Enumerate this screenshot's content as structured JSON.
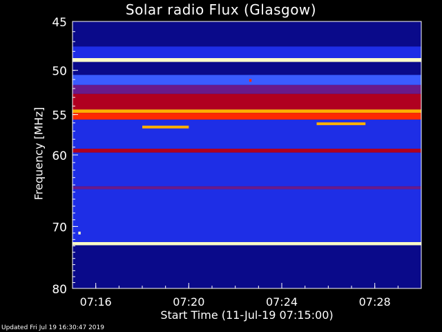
{
  "chart_data": {
    "type": "heatmap",
    "title": "Solar radio Flux (Glasgow)",
    "xlabel": "Start Time (11-Jul-19 07:15:00)",
    "ylabel": "Frequency [MHz]",
    "x_unit": "minutes since 07:15",
    "xlim": [
      0,
      15
    ],
    "ylim": [
      45,
      80
    ],
    "yscale": "log",
    "x_ticks": [
      {
        "value": 1,
        "label": "07:16"
      },
      {
        "value": 5,
        "label": "07:20"
      },
      {
        "value": 9,
        "label": "07:24"
      },
      {
        "value": 13,
        "label": "07:28"
      }
    ],
    "y_ticks": [
      {
        "value": 45,
        "label": "45"
      },
      {
        "value": 50,
        "label": "50"
      },
      {
        "value": 55,
        "label": "55"
      },
      {
        "value": 60,
        "label": "60"
      },
      {
        "value": 70,
        "label": "70"
      },
      {
        "value": 80,
        "label": "80"
      }
    ],
    "colormap": [
      "#000000",
      "#0a0a8a",
      "#1e2ee6",
      "#3a5cff",
      "#6a1a8a",
      "#b00020",
      "#ff2a00",
      "#ffb000",
      "#ffffc8"
    ],
    "bands": [
      {
        "f_lo": 45.0,
        "f_hi": 47.5,
        "level": 1
      },
      {
        "f_lo": 47.5,
        "f_hi": 48.7,
        "level": 2
      },
      {
        "f_lo": 48.7,
        "f_hi": 49.1,
        "level": 8
      },
      {
        "f_lo": 49.1,
        "f_hi": 50.5,
        "level": 1
      },
      {
        "f_lo": 50.5,
        "f_hi": 51.6,
        "level": 3
      },
      {
        "f_lo": 51.6,
        "f_hi": 52.6,
        "level": 4
      },
      {
        "f_lo": 52.6,
        "f_hi": 54.4,
        "level": 5
      },
      {
        "f_lo": 54.4,
        "f_hi": 54.8,
        "level": 7
      },
      {
        "f_lo": 54.8,
        "f_hi": 55.6,
        "level": 6
      },
      {
        "f_lo": 55.6,
        "f_hi": 59.2,
        "level": 2
      },
      {
        "f_lo": 59.2,
        "f_hi": 59.7,
        "level": 5
      },
      {
        "f_lo": 59.7,
        "f_hi": 64.2,
        "level": 2
      },
      {
        "f_lo": 64.2,
        "f_hi": 64.6,
        "level": 4
      },
      {
        "f_lo": 64.6,
        "f_hi": 72.4,
        "level": 2
      },
      {
        "f_lo": 72.4,
        "f_hi": 72.9,
        "level": 8
      },
      {
        "f_lo": 72.9,
        "f_hi": 80.0,
        "level": 1
      }
    ],
    "bursts": [
      {
        "t_start": 3.0,
        "t_end": 5.0,
        "f": 56.5,
        "level": 7
      },
      {
        "t_start": 10.5,
        "t_end": 12.6,
        "f": 56.1,
        "level": 7
      },
      {
        "t_start": 7.6,
        "t_end": 7.7,
        "f": 51.1,
        "level": 6
      },
      {
        "t_start": 0.25,
        "t_end": 0.35,
        "f": 71.0,
        "level": 8
      }
    ]
  },
  "updated_text": "Updated Fri Jul 19 16:30:47 2019"
}
